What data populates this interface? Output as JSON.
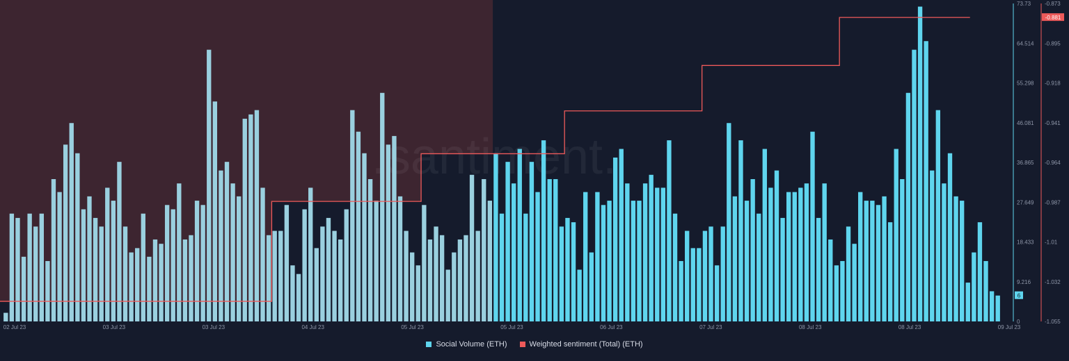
{
  "watermark": ".santiment.",
  "colors": {
    "background": "#151b2c",
    "volume": "#5fd5ee",
    "volume_highlight": "#9ad0df",
    "sentiment": "#ee5a5a",
    "highlight_region": "#3d2530",
    "axis_text": "#8e96a8"
  },
  "chart_data": {
    "type": "bar",
    "title": "",
    "xlabel": "",
    "ylabel": "",
    "legend_position": "bottom-center",
    "grid": false,
    "x_tick_labels": [
      "02 Jul 23",
      "03 Jul 23",
      "03 Jul 23",
      "04 Jul 23",
      "05 Jul 23",
      "05 Jul 23",
      "06 Jul 23",
      "07 Jul 23",
      "08 Jul 23",
      "08 Jul 23",
      "09 Jul 23"
    ],
    "y_left": {
      "ylim": [
        0,
        73.73
      ],
      "tick_labels": [
        "0",
        "9.216",
        "18.433",
        "27.649",
        "36.865",
        "46.081",
        "55.298",
        "64.514",
        "73.73"
      ]
    },
    "y_right": {
      "ylim": [
        -1.055,
        -0.873
      ],
      "tick_labels": [
        "-1.055",
        "-1.032",
        "-1.01",
        "-0.987",
        "-0.964",
        "-0.941",
        "-0.918",
        "-0.895",
        "-0.873"
      ]
    },
    "highlight_range_bars": [
      0,
      81
    ],
    "series": [
      {
        "name": "Social Volume (ETH)",
        "axis": "left",
        "type": "bar",
        "current_value": "6",
        "values": [
          2,
          25,
          24,
          15,
          25,
          22,
          25,
          14,
          33,
          30,
          41,
          46,
          39,
          26,
          29,
          24,
          22,
          31,
          28,
          37,
          22,
          16,
          17,
          25,
          15,
          19,
          18,
          27,
          26,
          32,
          19,
          20,
          28,
          27,
          63,
          51,
          35,
          37,
          32,
          29,
          47,
          48,
          49,
          31,
          20,
          21,
          21,
          27,
          13,
          11,
          26,
          31,
          17,
          22,
          24,
          21,
          19,
          26,
          49,
          44,
          39,
          33,
          28,
          53,
          41,
          43,
          29,
          21,
          16,
          13,
          27,
          19,
          22,
          20,
          12,
          16,
          19,
          20,
          34,
          21,
          33,
          28,
          39,
          25,
          37,
          32,
          40,
          25,
          37,
          30,
          42,
          33,
          33,
          22,
          24,
          23,
          12,
          30,
          16,
          30,
          27,
          28,
          38,
          40,
          32,
          28,
          28,
          32,
          34,
          31,
          31,
          42,
          25,
          14,
          21,
          17,
          17,
          21,
          22,
          13,
          22,
          46,
          29,
          42,
          28,
          33,
          25,
          40,
          31,
          35,
          24,
          30,
          30,
          31,
          32,
          44,
          24,
          32,
          19,
          13,
          14,
          22,
          18,
          30,
          28,
          28,
          27,
          29,
          23,
          40,
          33,
          53,
          63,
          73,
          65,
          35,
          49,
          32,
          39,
          29,
          28,
          9,
          16,
          23,
          14,
          7,
          6
        ]
      },
      {
        "name": "Weighted sentiment (Total) (ETH)",
        "axis": "right",
        "type": "step-line",
        "current_value": "-0.881",
        "steps": [
          {
            "from_bar": 0,
            "to_bar": 44,
            "value": -1.0435
          },
          {
            "from_bar": 45,
            "to_bar": 69,
            "value": -0.9863
          },
          {
            "from_bar": 70,
            "to_bar": 93,
            "value": -0.959
          },
          {
            "from_bar": 94,
            "to_bar": 116,
            "value": -0.9345
          },
          {
            "from_bar": 117,
            "to_bar": 139,
            "value": -0.9085
          },
          {
            "from_bar": 140,
            "to_bar": 159,
            "value": -0.881
          }
        ]
      }
    ]
  }
}
